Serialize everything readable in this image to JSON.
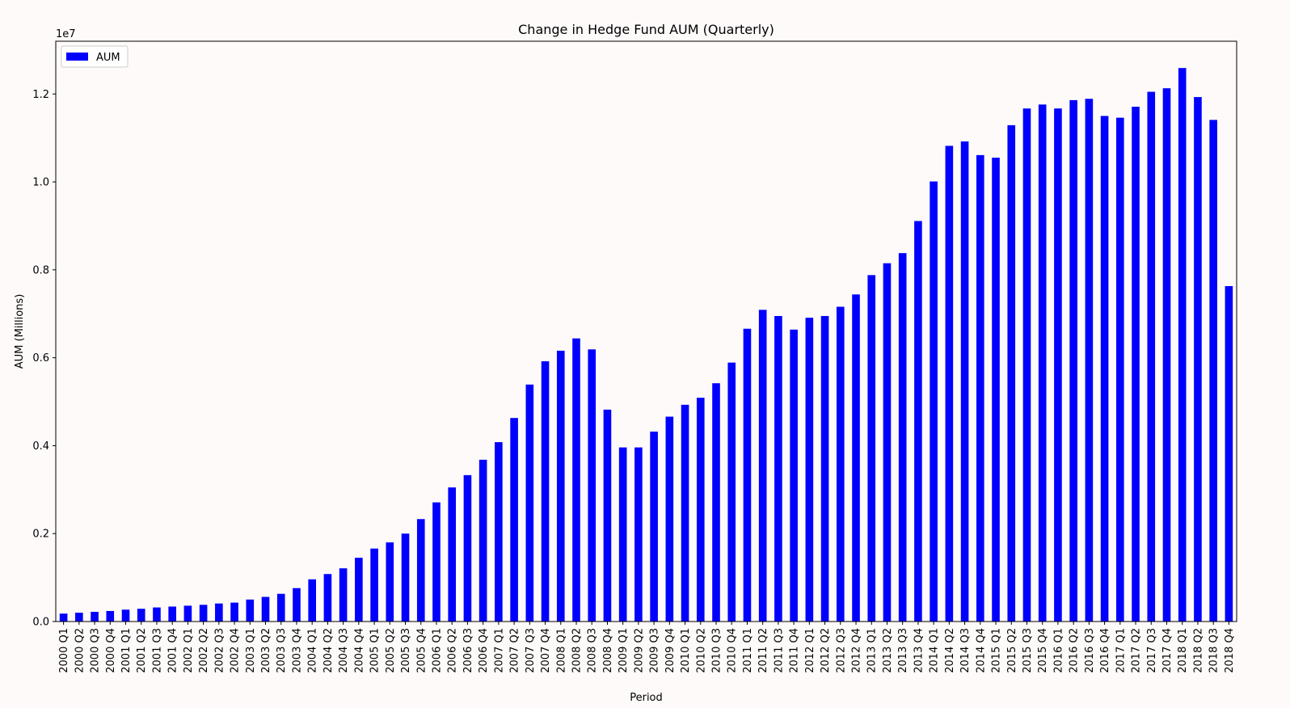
{
  "chart_data": {
    "type": "bar",
    "title": "Change in Hedge Fund AUM (Quarterly)",
    "xlabel": "Period",
    "ylabel": "AUM (Millions)",
    "y_offset_label": "1e7",
    "ylim": [
      0,
      13200000
    ],
    "y_ticks": [
      0,
      2000000,
      4000000,
      6000000,
      8000000,
      10000000,
      12000000
    ],
    "y_tick_labels": [
      "0.0",
      "0.2",
      "0.4",
      "0.6",
      "0.8",
      "1.0",
      "1.2"
    ],
    "grid": false,
    "legend_position": "top-left",
    "categories": [
      "2000 Q1",
      "2000 Q2",
      "2000 Q3",
      "2000 Q4",
      "2001 Q1",
      "2001 Q2",
      "2001 Q3",
      "2001 Q4",
      "2002 Q1",
      "2002 Q2",
      "2002 Q3",
      "2002 Q4",
      "2003 Q1",
      "2003 Q2",
      "2003 Q3",
      "2003 Q4",
      "2004 Q1",
      "2004 Q2",
      "2004 Q3",
      "2004 Q4",
      "2005 Q1",
      "2005 Q2",
      "2005 Q3",
      "2005 Q4",
      "2006 Q1",
      "2006 Q2",
      "2006 Q3",
      "2006 Q4",
      "2007 Q1",
      "2007 Q2",
      "2007 Q3",
      "2007 Q4",
      "2008 Q1",
      "2008 Q2",
      "2008 Q3",
      "2008 Q4",
      "2009 Q1",
      "2009 Q2",
      "2009 Q3",
      "2009 Q4",
      "2010 Q1",
      "2010 Q2",
      "2010 Q3",
      "2010 Q4",
      "2011 Q1",
      "2011 Q2",
      "2011 Q3",
      "2011 Q4",
      "2012 Q1",
      "2012 Q2",
      "2012 Q3",
      "2012 Q4",
      "2013 Q1",
      "2013 Q2",
      "2013 Q3",
      "2013 Q4",
      "2014 Q1",
      "2014 Q2",
      "2014 Q3",
      "2014 Q4",
      "2015 Q1",
      "2015 Q2",
      "2015 Q3",
      "2015 Q4",
      "2016 Q1",
      "2016 Q2",
      "2016 Q3",
      "2016 Q4",
      "2017 Q1",
      "2017 Q2",
      "2017 Q3",
      "2017 Q4",
      "2018 Q1",
      "2018 Q2",
      "2018 Q3",
      "2018 Q4"
    ],
    "series": [
      {
        "name": "AUM",
        "color": "#0000ff",
        "values": [
          180000,
          200000,
          220000,
          240000,
          270000,
          290000,
          320000,
          340000,
          360000,
          380000,
          410000,
          430000,
          500000,
          560000,
          630000,
          760000,
          960000,
          1080000,
          1210000,
          1450000,
          1660000,
          1800000,
          2000000,
          2330000,
          2710000,
          3050000,
          3330000,
          3680000,
          4080000,
          4630000,
          5390000,
          5920000,
          6160000,
          6440000,
          6190000,
          4820000,
          3960000,
          3960000,
          4320000,
          4660000,
          4930000,
          5090000,
          5420000,
          5890000,
          6660000,
          7090000,
          6950000,
          6640000,
          6910000,
          6950000,
          7160000,
          7440000,
          7880000,
          8150000,
          8380000,
          9110000,
          10010000,
          10820000,
          10920000,
          10610000,
          10550000,
          11290000,
          11670000,
          11760000,
          11670000,
          11860000,
          11890000,
          11500000,
          11460000,
          11710000,
          12050000,
          12130000,
          12590000,
          11930000,
          11410000,
          7630000
        ]
      }
    ]
  }
}
